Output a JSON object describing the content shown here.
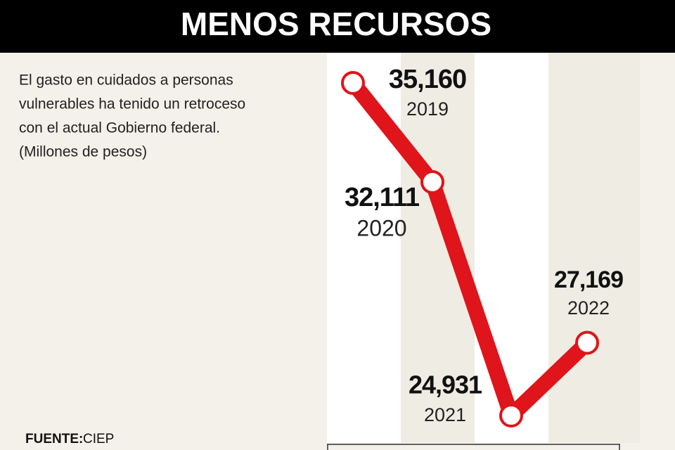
{
  "chart_data": {
    "type": "line",
    "title": "MENOS RECURSOS",
    "subtitle": [
      "El gasto en cuidados a personas",
      "vulnerables ha tenido un retroceso",
      "con el actual Gobierno federal.",
      "(Millones de pesos)"
    ],
    "source_label": "FUENTE:",
    "source": "CIEP",
    "categories": [
      "2019",
      "2020",
      "2021",
      "2022"
    ],
    "values": [
      35160,
      32111,
      24931,
      27169
    ],
    "value_labels": [
      "35,160",
      "32,111",
      "24,931",
      "27,169"
    ],
    "color": "#e0141b"
  }
}
